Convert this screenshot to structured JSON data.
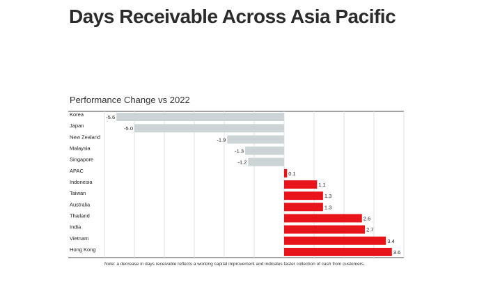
{
  "page": {
    "title": "Days Receivable Across Asia Pacific",
    "subtitle": "Performance Change vs 2022",
    "note": "Note: a decrease in days receivable reflects a working capital improvement and indicates faster collection of cash from customers."
  },
  "colors": {
    "negative": "#cdd4d6",
    "positive": "#e8141c",
    "grid": "#e2e2e2",
    "axis": "#444444"
  },
  "chart_data": {
    "type": "bar",
    "orientation": "horizontal",
    "title": "Performance Change vs 2022",
    "xlim": [
      -6,
      4
    ],
    "grid": true,
    "categories": [
      "Korea",
      "Japan",
      "New Zealand",
      "Malaysia",
      "Singapore",
      "APAC",
      "Indonesia",
      "Taiwan",
      "Australia",
      "Thailand",
      "India",
      "Vietnam",
      "Hong Kong"
    ],
    "values": [
      -5.6,
      -5.0,
      -1.9,
      -1.3,
      -1.2,
      0.1,
      1.1,
      1.3,
      1.3,
      2.6,
      2.7,
      3.4,
      3.6
    ],
    "value_labels": [
      "-5.6",
      "-5.0",
      "-1.9",
      "-1.3",
      "-1.2",
      "0.1",
      "1.1",
      "1.3",
      "1.3",
      "2.6",
      "2.7",
      "3.4",
      "3.6"
    ]
  }
}
